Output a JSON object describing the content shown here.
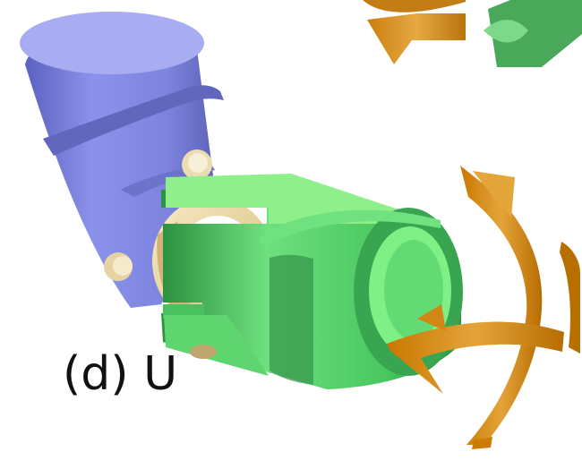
{
  "caption": "(d) U",
  "colors": {
    "background": "#ffffff",
    "blue_yoke": "#7f86de",
    "blue_yoke_dark": "#5a5fb3",
    "green_yoke": "#4fcf63",
    "green_yoke_dark": "#2f9e45",
    "cross_ring": "#ead7a7",
    "cross_ring_dark": "#c9ad72",
    "rotation_arrow": "#d68b0d",
    "rotation_arrow_dark": "#b46d00",
    "caption_text": "#111111"
  },
  "icons": {
    "rotation_arrows": "curved-arrow-icon"
  }
}
